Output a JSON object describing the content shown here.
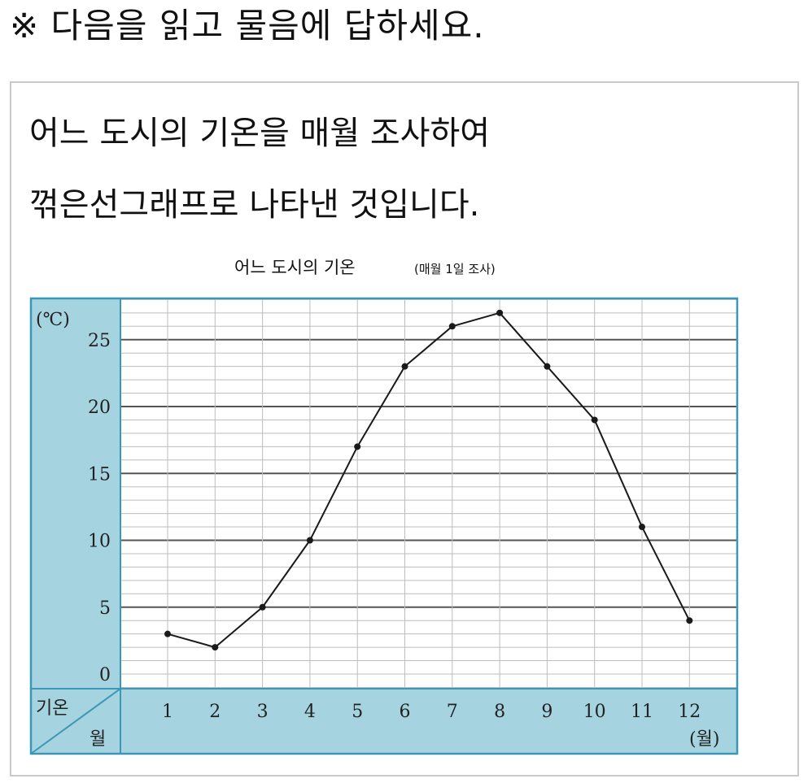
{
  "instruction": "※ 다음을 읽고 물음에 답하세요.",
  "description": {
    "line1": "어느 도시의 기온을 매월 조사하여",
    "line2": "꺾은선그래프로 나타낸 것입니다."
  },
  "chart_data": {
    "type": "line",
    "title": "어느 도시의 기온",
    "subtitle": "(매월 1일 조사)",
    "ylabel": "(℃)",
    "xlabel": "(월)",
    "corner_top": "기온",
    "corner_bottom": "월",
    "ylim": [
      -1,
      28
    ],
    "yticks": [
      0,
      5,
      10,
      15,
      20,
      25
    ],
    "categories": [
      "1",
      "2",
      "3",
      "4",
      "5",
      "6",
      "7",
      "8",
      "9",
      "10",
      "11",
      "12"
    ],
    "series": [
      {
        "values": [
          3,
          2,
          5,
          10,
          17,
          23,
          26,
          27,
          23,
          19,
          11,
          4
        ]
      }
    ],
    "grid": true,
    "colors": {
      "axis_band": "#a5d3e0",
      "frame": "#3a97b5",
      "line": "#1a1a1a"
    }
  }
}
